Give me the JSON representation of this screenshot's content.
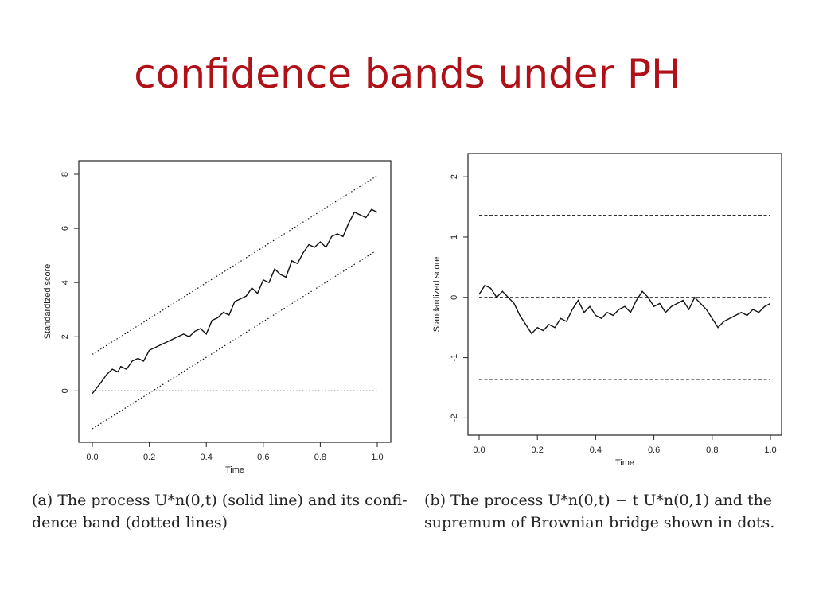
{
  "slide": {
    "title": "confidence bands under PH"
  },
  "captions": {
    "a": {
      "line1": "(a) The process U*n(0,t) (solid line) and its confi-",
      "line2": "dence band (dotted lines)"
    },
    "b": {
      "line1": "(b) The process U*n(0,t) − t U*n(0,1) and the",
      "line2": "supremum of Brownian bridge shown in dots."
    }
  },
  "chart_data": [
    {
      "type": "line",
      "xlabel": "Time",
      "ylabel": "Standardized score",
      "xlim": [
        0,
        1
      ],
      "ylim": [
        -1.4,
        8
      ],
      "xticks": [
        "0.0",
        "0.2",
        "0.4",
        "0.6",
        "0.8",
        "1.0"
      ],
      "yticks": [
        "0",
        "2",
        "4",
        "6",
        "8"
      ],
      "series": [
        {
          "style": "solid",
          "x": [
            0.0,
            0.03,
            0.05,
            0.07,
            0.09,
            0.1,
            0.12,
            0.14,
            0.16,
            0.18,
            0.2,
            0.22,
            0.24,
            0.26,
            0.28,
            0.3,
            0.32,
            0.34,
            0.36,
            0.38,
            0.4,
            0.42,
            0.44,
            0.46,
            0.48,
            0.5,
            0.52,
            0.54,
            0.56,
            0.58,
            0.6,
            0.62,
            0.64,
            0.66,
            0.68,
            0.7,
            0.72,
            0.74,
            0.76,
            0.78,
            0.8,
            0.82,
            0.84,
            0.86,
            0.88,
            0.9,
            0.92,
            0.94,
            0.96,
            0.98,
            1.0
          ],
          "y": [
            -0.1,
            0.3,
            0.6,
            0.8,
            0.7,
            0.9,
            0.8,
            1.1,
            1.2,
            1.1,
            1.5,
            1.6,
            1.7,
            1.8,
            1.9,
            2.0,
            2.1,
            2.0,
            2.2,
            2.3,
            2.1,
            2.6,
            2.7,
            2.9,
            2.8,
            3.3,
            3.4,
            3.5,
            3.8,
            3.6,
            4.1,
            4.0,
            4.5,
            4.3,
            4.2,
            4.8,
            4.7,
            5.1,
            5.4,
            5.3,
            5.5,
            5.3,
            5.7,
            5.8,
            5.7,
            6.2,
            6.6,
            6.5,
            6.4,
            6.7,
            6.6
          ]
        },
        {
          "style": "dotted",
          "x": [
            0,
            1
          ],
          "y": [
            1.35,
            7.95
          ]
        },
        {
          "style": "dotted",
          "x": [
            0,
            1
          ],
          "y": [
            -1.4,
            5.2
          ]
        },
        {
          "style": "dotted",
          "x": [
            0,
            1
          ],
          "y": [
            0,
            0
          ]
        }
      ]
    },
    {
      "type": "line",
      "xlabel": "Time",
      "ylabel": "Standardized score",
      "xlim": [
        0,
        1
      ],
      "ylim": [
        -2.1,
        2.2
      ],
      "xticks": [
        "0.0",
        "0.2",
        "0.4",
        "0.6",
        "0.8",
        "1.0"
      ],
      "yticks": [
        "-2",
        "-1",
        "0",
        "1",
        "2"
      ],
      "series": [
        {
          "style": "solid",
          "x": [
            0.0,
            0.02,
            0.04,
            0.06,
            0.08,
            0.1,
            0.12,
            0.14,
            0.16,
            0.18,
            0.2,
            0.22,
            0.24,
            0.26,
            0.28,
            0.3,
            0.32,
            0.34,
            0.36,
            0.38,
            0.4,
            0.42,
            0.44,
            0.46,
            0.48,
            0.5,
            0.52,
            0.54,
            0.56,
            0.58,
            0.6,
            0.62,
            0.64,
            0.66,
            0.68,
            0.7,
            0.72,
            0.74,
            0.76,
            0.78,
            0.8,
            0.82,
            0.84,
            0.86,
            0.88,
            0.9,
            0.92,
            0.94,
            0.96,
            0.98,
            1.0
          ],
          "y": [
            0.05,
            0.2,
            0.15,
            0.0,
            0.1,
            0.0,
            -0.1,
            -0.3,
            -0.45,
            -0.6,
            -0.5,
            -0.55,
            -0.45,
            -0.5,
            -0.35,
            -0.4,
            -0.2,
            -0.05,
            -0.25,
            -0.15,
            -0.3,
            -0.35,
            -0.25,
            -0.3,
            -0.2,
            -0.15,
            -0.25,
            -0.05,
            0.1,
            0.0,
            -0.15,
            -0.1,
            -0.25,
            -0.15,
            -0.1,
            -0.05,
            -0.2,
            0.0,
            -0.1,
            -0.2,
            -0.35,
            -0.5,
            -0.4,
            -0.35,
            -0.3,
            -0.25,
            -0.3,
            -0.2,
            -0.25,
            -0.15,
            -0.1
          ]
        },
        {
          "style": "dashed",
          "x": [
            0,
            1
          ],
          "y": [
            1.36,
            1.36
          ]
        },
        {
          "style": "dashed",
          "x": [
            0,
            1
          ],
          "y": [
            0,
            0
          ]
        },
        {
          "style": "dashed",
          "x": [
            0,
            1
          ],
          "y": [
            -1.36,
            -1.36
          ]
        }
      ]
    }
  ]
}
